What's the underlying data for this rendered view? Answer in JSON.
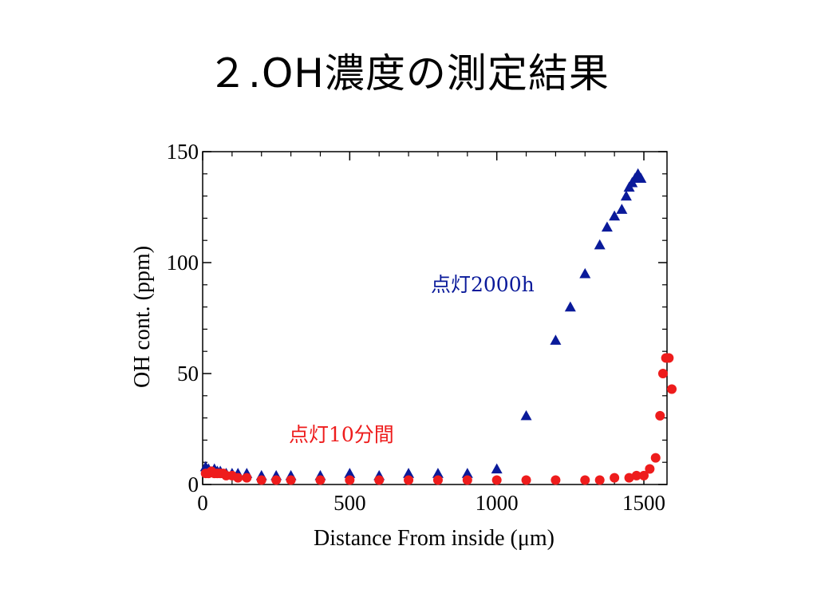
{
  "slide": {
    "title": "２.OH濃度の測定結果"
  },
  "chart_data": {
    "type": "scatter",
    "title": "",
    "xlabel": "Distance From inside (μm)",
    "ylabel": "OH cont. (ppm)",
    "xlim": [
      0,
      1600
    ],
    "ylim": [
      0,
      150
    ],
    "xticks": [
      0,
      500,
      1000,
      1500
    ],
    "yticks": [
      0,
      50,
      100,
      150
    ],
    "grid": false,
    "legend": "none",
    "series": [
      {
        "name": "点灯2000h",
        "marker": "triangle",
        "color": "#0a1a9a",
        "points": [
          [
            10,
            8
          ],
          [
            20,
            7
          ],
          [
            40,
            7
          ],
          [
            50,
            6
          ],
          [
            60,
            6
          ],
          [
            80,
            5
          ],
          [
            100,
            5
          ],
          [
            120,
            5
          ],
          [
            150,
            5
          ],
          [
            200,
            4
          ],
          [
            250,
            4
          ],
          [
            300,
            4
          ],
          [
            400,
            4
          ],
          [
            500,
            5
          ],
          [
            600,
            4
          ],
          [
            700,
            5
          ],
          [
            800,
            5
          ],
          [
            900,
            5
          ],
          [
            1000,
            7
          ],
          [
            1100,
            31
          ],
          [
            1200,
            65
          ],
          [
            1250,
            80
          ],
          [
            1300,
            95
          ],
          [
            1350,
            108
          ],
          [
            1375,
            116
          ],
          [
            1400,
            121
          ],
          [
            1425,
            124
          ],
          [
            1440,
            130
          ],
          [
            1450,
            134
          ],
          [
            1460,
            136
          ],
          [
            1470,
            138
          ],
          [
            1480,
            140
          ],
          [
            1490,
            138
          ]
        ]
      },
      {
        "name": "点灯10分間",
        "marker": "circle",
        "color": "#ee1c1c",
        "points": [
          [
            10,
            5
          ],
          [
            20,
            5
          ],
          [
            30,
            6
          ],
          [
            40,
            5
          ],
          [
            50,
            5
          ],
          [
            60,
            5
          ],
          [
            70,
            5
          ],
          [
            80,
            4
          ],
          [
            100,
            4
          ],
          [
            120,
            3
          ],
          [
            150,
            3
          ],
          [
            200,
            2
          ],
          [
            250,
            2
          ],
          [
            300,
            2
          ],
          [
            400,
            2
          ],
          [
            500,
            2
          ],
          [
            600,
            2
          ],
          [
            700,
            2
          ],
          [
            800,
            2
          ],
          [
            900,
            2
          ],
          [
            1000,
            2
          ],
          [
            1100,
            2
          ],
          [
            1200,
            2
          ],
          [
            1300,
            2
          ],
          [
            1350,
            2
          ],
          [
            1400,
            3
          ],
          [
            1450,
            3
          ],
          [
            1475,
            4
          ],
          [
            1500,
            4
          ],
          [
            1520,
            7
          ],
          [
            1540,
            12
          ],
          [
            1555,
            31
          ],
          [
            1565,
            50
          ],
          [
            1575,
            57
          ],
          [
            1585,
            57
          ],
          [
            1595,
            43
          ]
        ]
      }
    ]
  }
}
